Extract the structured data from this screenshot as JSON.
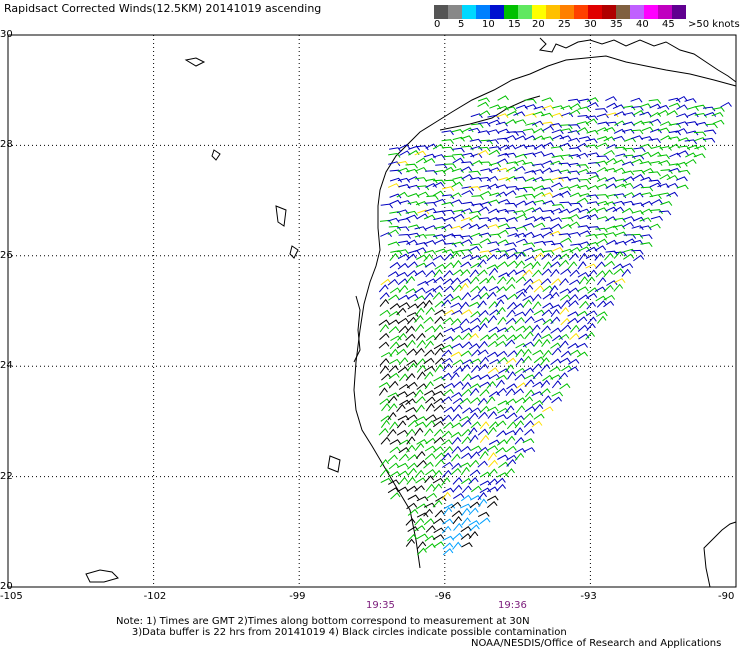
{
  "title": "Rapidsact Corrected Winds(12.5KM) 20141019 ascending",
  "legend": {
    "colors": [
      "#555555",
      "#888888",
      "#00d8ff",
      "#0080ff",
      "#0010d0",
      "#00c000",
      "#60e860",
      "#ffff00",
      "#ffc000",
      "#ff8000",
      "#ff4000",
      "#e00000",
      "#b00000",
      "#806040",
      "#c060ff",
      "#ff00ff",
      "#c000c0",
      "#600090"
    ],
    "labels": [
      "0",
      "5",
      "10",
      "15",
      "20",
      "25",
      "30",
      "35",
      "40",
      "45",
      ">50 knots"
    ]
  },
  "axes": {
    "lat_labels": [
      "30",
      "28",
      "26",
      "24",
      "22",
      "20"
    ],
    "lon_labels": [
      "-105",
      "-102",
      "-99",
      "-96",
      "-93",
      "-90"
    ]
  },
  "times": [
    "19:35",
    "19:36"
  ],
  "notes": {
    "line1": "Note: 1) Times are GMT 2)Times along bottom correspond to measurement at 30N",
    "line2": "3)Data buffer is 22 hrs from 20141019 4) Black circles indicate possible contamination"
  },
  "credit": "NOAA/NESDIS/Office of Research and Applications",
  "colors": {
    "grid": "#000000",
    "coast": "#000000",
    "calm": "#000000",
    "light": "#00a0ff",
    "moderate": "#00c000",
    "strong": "#0000c0",
    "gusty": "#ffe000"
  }
}
